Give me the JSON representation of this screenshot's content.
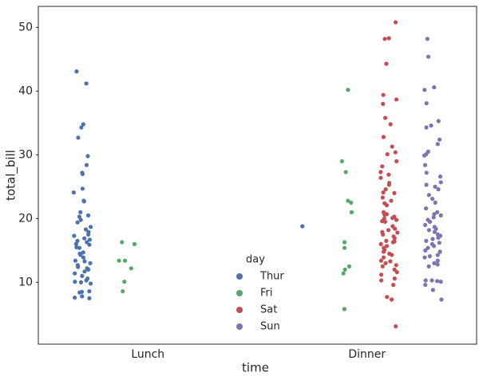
{
  "chart_data": {
    "type": "strip",
    "x_label": "time",
    "y_label": "total_bill",
    "legend_title": "day",
    "categories": [
      "Lunch",
      "Dinner"
    ],
    "ylim": [
      0.3,
      53.3
    ],
    "yticks": [
      10,
      20,
      30,
      40,
      50
    ],
    "legend_position": "lower center",
    "series": [
      {
        "name": "Thur",
        "color": "#4c72b0",
        "values": [
          [
            43.1,
            41.2,
            34.8,
            34.3,
            32.7,
            29.8,
            28.4,
            27.2,
            27.0,
            24.7,
            24.1,
            22.8,
            22.7,
            21.0,
            20.5,
            20.3,
            19.8,
            19.4,
            18.7,
            18.3,
            17.9,
            17.5,
            17.3,
            16.9,
            16.7,
            16.5,
            16.3,
            16.0,
            15.9,
            15.5,
            15.4,
            14.7,
            14.5,
            14.3,
            13.9,
            13.4,
            13.3,
            13.0,
            12.7,
            12.4,
            12.2,
            12.0,
            11.7,
            11.4,
            11.0,
            10.6,
            10.3,
            10.1,
            10.0,
            9.8,
            8.6,
            8.5,
            8.4,
            7.8,
            7.6,
            7.5
          ],
          [
            18.8
          ]
        ]
      },
      {
        "name": "Fri",
        "color": "#55a868",
        "values": [
          [
            16.3,
            16.0,
            13.4,
            13.4,
            12.2,
            10.1,
            8.6
          ],
          [
            40.2,
            29.0,
            27.3,
            22.8,
            22.5,
            21.0,
            16.3,
            15.4,
            12.5,
            12.0,
            11.4,
            5.8
          ]
        ]
      },
      {
        "name": "Sat",
        "color": "#c44e52",
        "values": [
          [],
          [
            50.8,
            48.3,
            48.2,
            44.3,
            39.4,
            38.7,
            38.0,
            35.8,
            34.8,
            32.8,
            31.3,
            30.4,
            30.1,
            29.0,
            28.2,
            27.3,
            26.9,
            26.4,
            25.6,
            25.3,
            24.6,
            24.1,
            24.0,
            23.3,
            22.8,
            22.4,
            22.1,
            21.0,
            20.7,
            20.6,
            20.3,
            20.1,
            20.0,
            19.8,
            19.6,
            19.5,
            18.8,
            18.4,
            18.2,
            17.9,
            17.8,
            17.5,
            17.2,
            16.9,
            16.5,
            16.4,
            16.3,
            16.0,
            15.7,
            15.4,
            15.1,
            14.8,
            14.5,
            14.3,
            13.9,
            13.4,
            13.3,
            13.0,
            12.7,
            12.5,
            12.0,
            11.6,
            11.2,
            10.6,
            10.3,
            9.6,
            7.7,
            7.3,
            3.1
          ]
        ]
      },
      {
        "name": "Sun",
        "color": "#8172b2",
        "values": [
          [],
          [
            48.2,
            45.4,
            40.6,
            40.2,
            38.1,
            35.3,
            34.6,
            34.3,
            32.4,
            31.7,
            30.5,
            30.1,
            29.9,
            28.4,
            27.2,
            26.6,
            25.7,
            25.3,
            25.0,
            24.6,
            23.7,
            23.1,
            22.5,
            21.6,
            21.0,
            20.7,
            20.5,
            20.2,
            19.8,
            19.5,
            19.0,
            18.7,
            18.4,
            18.2,
            17.9,
            17.5,
            17.3,
            17.0,
            16.8,
            16.5,
            16.2,
            16.0,
            15.7,
            15.4,
            15.0,
            14.8,
            14.3,
            14.1,
            13.9,
            13.4,
            13.0,
            12.8,
            12.5,
            10.3,
            10.3,
            10.2,
            10.1,
            9.6,
            8.8,
            7.3
          ]
        ]
      }
    ]
  }
}
